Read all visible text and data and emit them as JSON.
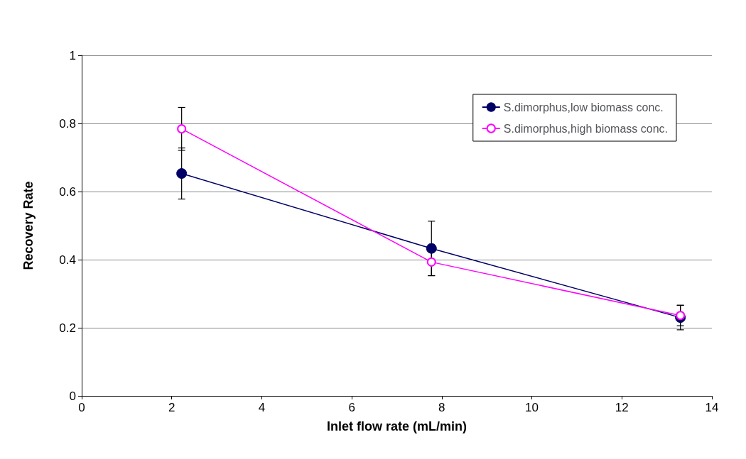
{
  "chart_data": {
    "type": "line",
    "xlabel": "Inlet flow rate (mL/min)",
    "ylabel": "Recovery Rate",
    "x": [
      2.22,
      7.77,
      13.3
    ],
    "series": [
      {
        "name": "S.dimorphus,low biomass conc.",
        "color": "#000066",
        "values": [
          0.653,
          0.433,
          0.23
        ],
        "errors": [
          0.075,
          0.08,
          0.036
        ]
      },
      {
        "name": "S.dimorphus,high biomass conc.",
        "color": "#ff00ff",
        "values": [
          0.784,
          0.393,
          0.236
        ],
        "errors": [
          0.063,
          0.04,
          0.03
        ]
      }
    ],
    "xlim": [
      0,
      14
    ],
    "xticks": [
      0,
      2,
      4,
      6,
      8,
      10,
      12,
      14
    ],
    "ylim": [
      0,
      1
    ],
    "yticks": [
      0,
      0.2,
      0.4,
      0.6,
      0.8,
      1
    ],
    "grid": "y",
    "legend": "top right",
    "marker": "circle",
    "line_style": "solid"
  }
}
